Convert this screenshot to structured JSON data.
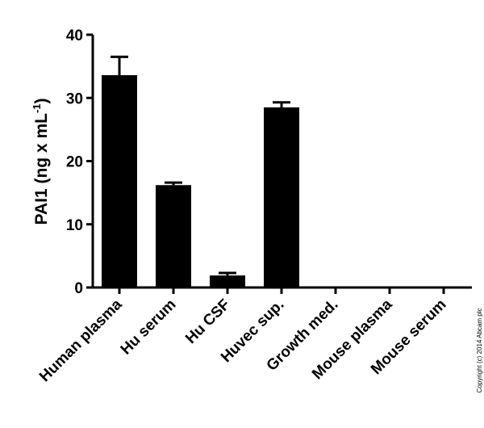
{
  "chart_data": {
    "type": "bar",
    "categories": [
      "Human plasma",
      "Hu serum",
      "Hu CSF",
      "Huvec sup.",
      "Growth med.",
      "Mouse plasma",
      "Mouse serum"
    ],
    "values": [
      33.6,
      16.2,
      1.9,
      28.5,
      0,
      0,
      0
    ],
    "error_upper": [
      36.5,
      16.6,
      2.3,
      29.3,
      0,
      0,
      0
    ],
    "ylabel_main": "PAI1 (ng x mL",
    "ylabel_sup": "-1",
    "ylabel_close": ")",
    "ylim": [
      0,
      40
    ],
    "yticks": [
      "0",
      "10",
      "20",
      "30",
      "40"
    ],
    "bar_color": "#000000",
    "grid": false,
    "legend": "none"
  },
  "copyright": "Copyright (c) 2014 Abcam plc"
}
